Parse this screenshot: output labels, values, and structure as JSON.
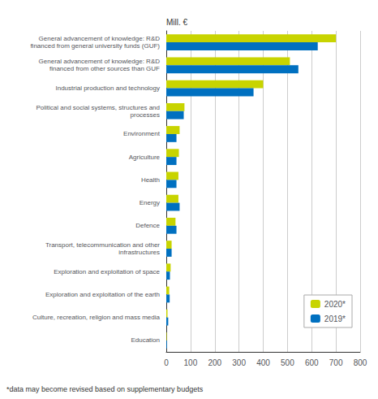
{
  "chart_data": {
    "type": "bar",
    "orientation": "horizontal",
    "xlabel": "Mill. €",
    "annotations": [
      "*data may become revised based on supplementary budgets"
    ],
    "categories": [
      "General advancement of knowledge: R&D\nfinanced from general university funds (GUF)",
      "General advancement of knowledge: R&D\nfinanced from other sources than GUF",
      "Industrial production and technology",
      "Political and social systems, structures and\nprocesses",
      "Environment",
      "Agriculture",
      "Health",
      "Energy",
      "Defence",
      "Transport, telecommunication and other\ninfrastructures",
      "Exploration and exploitation of space",
      "Exploration and exploitation of the earth",
      "Culture, recreation, religion and mass media",
      "Education"
    ],
    "series": [
      {
        "name": "2020*",
        "color": "#c8d400",
        "values": [
          700,
          510,
          400,
          75,
          55,
          52,
          50,
          50,
          38,
          22,
          18,
          12,
          5,
          2
        ]
      },
      {
        "name": "2019*",
        "color": "#0070c0",
        "values": [
          625,
          545,
          360,
          72,
          42,
          42,
          42,
          55,
          42,
          22,
          15,
          14,
          8,
          3
        ]
      }
    ],
    "xlim": [
      0,
      800
    ],
    "xticks": [
      0,
      100,
      200,
      300,
      400,
      500,
      600,
      700,
      800
    ],
    "grid": true,
    "legend": "lower right"
  }
}
